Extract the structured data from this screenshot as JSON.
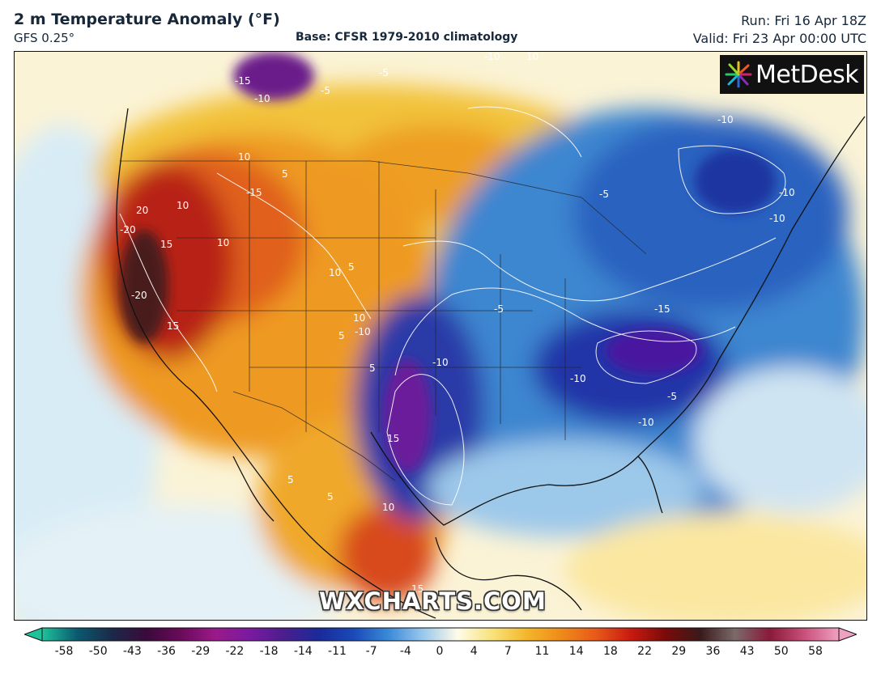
{
  "header": {
    "title": "2 m Temperature Anomaly (°F)",
    "model": "GFS 0.25°",
    "base": "Base: CFSR 1979-2010 climatology",
    "run": "Run: Fri 16 Apr 18Z",
    "valid": "Valid: Fri 23 Apr 00:00 UTC"
  },
  "logo": {
    "text": "MetDesk",
    "icon": "starburst-logo-icon"
  },
  "watermark": "WXCHARTS.COM",
  "colorbar": {
    "ticks": [
      "-58",
      "-50",
      "-43",
      "-36",
      "-29",
      "-22",
      "-18",
      "-14",
      "-11",
      "-7",
      "-4",
      "0",
      "4",
      "7",
      "11",
      "14",
      "18",
      "22",
      "29",
      "36",
      "43",
      "50",
      "58"
    ],
    "colors": [
      "#1fc39b",
      "#0a5a70",
      "#1b2a4a",
      "#3a0a3a",
      "#6a0a5a",
      "#9a1a8a",
      "#7a1aa0",
      "#4a1e8e",
      "#1a2a9a",
      "#1a4ab8",
      "#3a8ad8",
      "#9ac8ec",
      "#fffbe8",
      "#f8e27a",
      "#f3b62a",
      "#ef8a1a",
      "#e8581a",
      "#c81a10",
      "#7a0a0a",
      "#3a1a1a",
      "#7a6a6a",
      "#8a1a3a",
      "#c8507a",
      "#f0a0c0"
    ]
  },
  "contour_labels": [
    "-15",
    "-10",
    "-5",
    "-10",
    "10",
    "-10",
    "-5",
    "-5",
    "-10",
    "-10",
    "20",
    "-20",
    "-20",
    "15",
    "15",
    "10",
    "10",
    "10",
    "5",
    "5",
    "5",
    "5",
    "10",
    "10",
    "-15",
    "-5",
    "-10",
    "-5",
    "-10",
    "-10",
    "-15",
    "-10",
    "15",
    "5",
    "5",
    "15",
    "10"
  ]
}
